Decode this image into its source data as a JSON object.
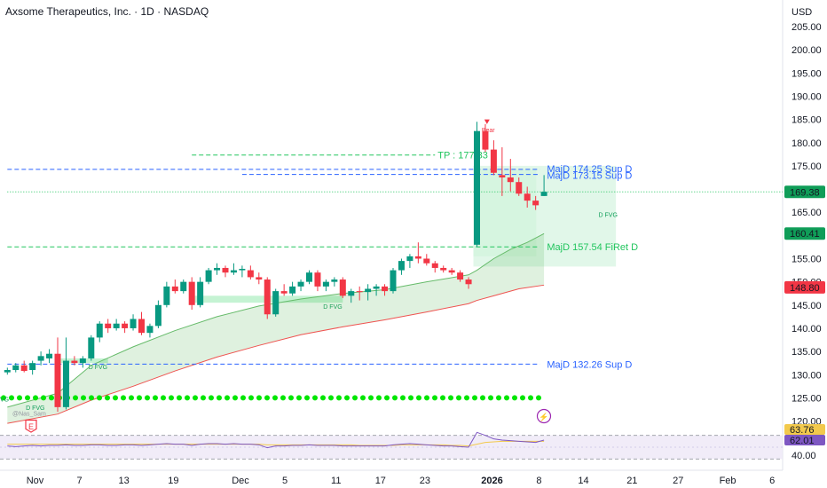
{
  "header": {
    "title": "Axsome Therapeutics, Inc. · 1D · NASDAQ",
    "currency": "USD"
  },
  "chart_data": {
    "type": "candlestick",
    "ylim": [
      118,
      210
    ],
    "y_ticks": [
      "205.00",
      "200.00",
      "195.00",
      "190.00",
      "185.00",
      "180.00",
      "175.00",
      "170.00",
      "165.00",
      "160.00",
      "155.00",
      "150.00",
      "145.00",
      "140.00",
      "135.00",
      "130.00",
      "125.00",
      "120.00"
    ],
    "x_ticks": [
      "Nov",
      "7",
      "13",
      "19",
      "Dec",
      "5",
      "11",
      "17",
      "23",
      "2026",
      "8",
      "14",
      "21",
      "27",
      "Feb",
      "6"
    ],
    "candles": [
      [
        130.5,
        131.5,
        130,
        131
      ],
      [
        131,
        132.5,
        130.5,
        132
      ],
      [
        132,
        133,
        130.5,
        130.8
      ],
      [
        131,
        133,
        130,
        132.5
      ],
      [
        133,
        135,
        132,
        134
      ],
      [
        133.5,
        135.5,
        132.5,
        134.5
      ],
      [
        134.5,
        138,
        122,
        123
      ],
      [
        123,
        138,
        122.5,
        133
      ],
      [
        133,
        134,
        132,
        132.5
      ],
      [
        132.5,
        134,
        131.5,
        133.5
      ],
      [
        133.5,
        138.5,
        133,
        138
      ],
      [
        138,
        141.5,
        137,
        141
      ],
      [
        141,
        142,
        139,
        140
      ],
      [
        140,
        142,
        139.5,
        141
      ],
      [
        141,
        141.5,
        139,
        140
      ],
      [
        140,
        143,
        139.5,
        142
      ],
      [
        142,
        143.5,
        138.5,
        139
      ],
      [
        139,
        141,
        138,
        140.5
      ],
      [
        140.5,
        146,
        140,
        145
      ],
      [
        145,
        150,
        144.5,
        149
      ],
      [
        149,
        150.5,
        147.5,
        148
      ],
      [
        148,
        150.5,
        147.5,
        150
      ],
      [
        150,
        151,
        144,
        145
      ],
      [
        145,
        151,
        144.5,
        150
      ],
      [
        150,
        153,
        149.5,
        152.5
      ],
      [
        152.5,
        154,
        151.5,
        153
      ],
      [
        153,
        153.5,
        151,
        152
      ],
      [
        152,
        154,
        151.5,
        152.5
      ],
      [
        152.5,
        153.5,
        151,
        152.8
      ],
      [
        152.5,
        153.5,
        150.5,
        151
      ],
      [
        151,
        152,
        149.5,
        150.5
      ],
      [
        150.5,
        151,
        142,
        143
      ],
      [
        143,
        148.5,
        142.5,
        148
      ],
      [
        148,
        149.5,
        147,
        147.5
      ],
      [
        147.5,
        150,
        147,
        149
      ],
      [
        149,
        150.5,
        148,
        150
      ],
      [
        150,
        152.5,
        149.5,
        152
      ],
      [
        152,
        152.5,
        148,
        149
      ],
      [
        149,
        150.5,
        148,
        150
      ],
      [
        150,
        151,
        149,
        150.5
      ],
      [
        150.5,
        151,
        146.5,
        147
      ],
      [
        147,
        148.5,
        145.5,
        148
      ],
      [
        148,
        149,
        146,
        147.8
      ],
      [
        147.8,
        149.5,
        146,
        148.5
      ],
      [
        148.5,
        149.5,
        147,
        149
      ],
      [
        149,
        149.5,
        147,
        148
      ],
      [
        148,
        153,
        147.5,
        152.5
      ],
      [
        152.5,
        155,
        151.5,
        154.5
      ],
      [
        154.5,
        156,
        153,
        155.5
      ],
      [
        155.5,
        158.5,
        154,
        155
      ],
      [
        155,
        156,
        153.5,
        154
      ],
      [
        154,
        154.5,
        152,
        153
      ],
      [
        153,
        153.5,
        152,
        152.5
      ],
      [
        152.5,
        153,
        151.5,
        152
      ],
      [
        152,
        152.5,
        150,
        150.5
      ],
      [
        150.5,
        151,
        148.5,
        149.5
      ],
      [
        158,
        184.5,
        157.5,
        182.5
      ],
      [
        182.5,
        184,
        178,
        178.5
      ],
      [
        178.5,
        180.5,
        173,
        173.5
      ],
      [
        173,
        179,
        168.5,
        172.5
      ],
      [
        172.5,
        176.5,
        169.5,
        171.5
      ],
      [
        171.5,
        172.5,
        168.5,
        169
      ],
      [
        169,
        170.5,
        166,
        167.5
      ],
      [
        167.5,
        168.5,
        165.5,
        166.5
      ],
      [
        168.5,
        173,
        168.5,
        169.4
      ]
    ],
    "ema_fast": [
      [
        0,
        123
      ],
      [
        6,
        126
      ],
      [
        10,
        132
      ],
      [
        15,
        136
      ],
      [
        20,
        139.5
      ],
      [
        25,
        142.5
      ],
      [
        30,
        144.8
      ],
      [
        35,
        146.3
      ],
      [
        40,
        147.5
      ],
      [
        45,
        148.3
      ],
      [
        50,
        150
      ],
      [
        55,
        151.5
      ],
      [
        56,
        152.5
      ],
      [
        58,
        155
      ],
      [
        60,
        157
      ],
      [
        62,
        158.5
      ],
      [
        64,
        160.4
      ]
    ],
    "ema_slow": [
      [
        0,
        119.5
      ],
      [
        6,
        121.5
      ],
      [
        10,
        124.5
      ],
      [
        15,
        127.5
      ],
      [
        20,
        130.8
      ],
      [
        25,
        133.8
      ],
      [
        30,
        136.3
      ],
      [
        35,
        138.6
      ],
      [
        40,
        140.3
      ],
      [
        45,
        141.8
      ],
      [
        50,
        143.5
      ],
      [
        55,
        145.3
      ],
      [
        56,
        146
      ],
      [
        58,
        147
      ],
      [
        61,
        148.5
      ],
      [
        64,
        149.3
      ]
    ],
    "zones": [
      {
        "from": 56,
        "to": 63.5,
        "low": 155.5,
        "high": 174.3,
        "color": "#b7f0c8"
      },
      {
        "from": 56,
        "to": 73,
        "low": 153.3,
        "high": 175,
        "color": "#d9f5e3"
      }
    ],
    "fvg_zones": [
      {
        "from": 22,
        "to": 40,
        "low": 145.5,
        "high": 147,
        "text": "D FVG"
      },
      {
        "from": 6,
        "to": 12,
        "low": 132.5,
        "high": 133.5,
        "text": "D FVG"
      }
    ],
    "levels": [
      {
        "price": 177.33,
        "from": 22,
        "to": 51,
        "color": "#22c55e",
        "dash": true,
        "text": "TP : 177.33"
      },
      {
        "price": 174.25,
        "from": 0,
        "to": 63.5,
        "color": "#2962ff",
        "dash": true,
        "text": "MajD 174.25 Sup D"
      },
      {
        "price": 173.15,
        "from": 28,
        "to": 63.5,
        "color": "#2962ff",
        "dash": true,
        "text": "MajD 173.15 Sup D"
      },
      {
        "price": 169.38,
        "from": 0,
        "to": 91,
        "color": "#22c55e",
        "dash": "dot",
        "text": ""
      },
      {
        "price": 157.54,
        "from": 0,
        "to": 63.5,
        "color": "#22c55e",
        "dash": true,
        "text": "MajD 157.54 FiRet D"
      },
      {
        "price": 132.26,
        "from": 0,
        "to": 63.5,
        "color": "#2962ff",
        "dash": true,
        "text": "MajD 132.26 Sup D"
      }
    ],
    "price_labels": [
      {
        "price": 169.38,
        "text": "169.38",
        "bg": "#0f9d58"
      },
      {
        "price": 160.41,
        "text": "160.41",
        "bg": "#0f9d58"
      },
      {
        "price": 148.8,
        "text": "148.80",
        "bg": "#f23645"
      }
    ],
    "annotations": {
      "bear": "Bear",
      "dfvg": "D FVG",
      "dfvg_small": "D FVG",
      "dfvg_left": "VG",
      "watermark": "@Nas_Sam",
      "earnings": "E",
      "flash": "⚡"
    },
    "dots_price": 125,
    "dots_count": 68,
    "rsi": {
      "value_a": "63.76",
      "value_b": "62.01",
      "tick": "40.00",
      "band_top": 70,
      "band_bottom": 30,
      "values": [
        52,
        51,
        52,
        53,
        52,
        53,
        53,
        54,
        53,
        53,
        54,
        54,
        53,
        53,
        54,
        54,
        53,
        54,
        55,
        56,
        55,
        55,
        53,
        55,
        56,
        56,
        55,
        56,
        55,
        55,
        54,
        49,
        52,
        52,
        53,
        53,
        54,
        53,
        53,
        53,
        52,
        52,
        52,
        52,
        52,
        52,
        54,
        55,
        56,
        55,
        54,
        53,
        52,
        52,
        51,
        50,
        75,
        70,
        64,
        62,
        61,
        60,
        59,
        58,
        62
      ],
      "signal": [
        55,
        55,
        55,
        55,
        55,
        55,
        55,
        55,
        55,
        55,
        55,
        55,
        55,
        55,
        55,
        55,
        55,
        55,
        55,
        55,
        55,
        55,
        55,
        55,
        55,
        55,
        55,
        55,
        55,
        55,
        55,
        54,
        54,
        54,
        54,
        54,
        54,
        54,
        54,
        54,
        54,
        54,
        53,
        53,
        53,
        53,
        53,
        54,
        54,
        54,
        54,
        54,
        54,
        53,
        53,
        52,
        55,
        58,
        59,
        60,
        60,
        60,
        60,
        60,
        60
      ]
    }
  }
}
